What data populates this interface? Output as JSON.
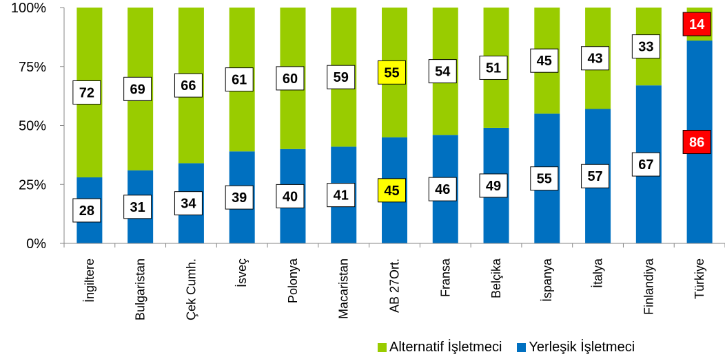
{
  "chart_data": {
    "type": "bar",
    "stacked": true,
    "percent_axis": true,
    "categories": [
      "İngiltere",
      "Bulgaristan",
      "Çek Cumh.",
      "İsveç",
      "Polonya",
      "Macaristan",
      "AB 27Ort.",
      "Fransa",
      "Belçika",
      "İspanya",
      "İtalya",
      "Finlandiya",
      "Türkiye"
    ],
    "series": [
      {
        "name": "Yerleşik İşletmeci",
        "color": "#0070c0",
        "values": [
          28,
          31,
          34,
          39,
          40,
          41,
          45,
          46,
          49,
          55,
          57,
          67,
          86
        ]
      },
      {
        "name": "Alternatif İşletmeci",
        "color": "#99cc00",
        "values": [
          72,
          69,
          66,
          61,
          60,
          59,
          55,
          54,
          51,
          45,
          43,
          33,
          14
        ]
      }
    ],
    "highlight": {
      "AB 27Ort.": "#ffff00",
      "Türkiye": "#ff0000"
    },
    "yticks": [
      "0%",
      "25%",
      "50%",
      "75%",
      "100%"
    ],
    "ylim": [
      0,
      100
    ],
    "title": "",
    "xlabel": "",
    "ylabel": "",
    "grid": false,
    "legend_position": "bottom-right"
  },
  "legend": {
    "items": [
      {
        "label": "Alternatif İşletmeci",
        "color": "#99cc00"
      },
      {
        "label": "Yerleşik İşletmeci",
        "color": "#0070c0"
      }
    ]
  }
}
